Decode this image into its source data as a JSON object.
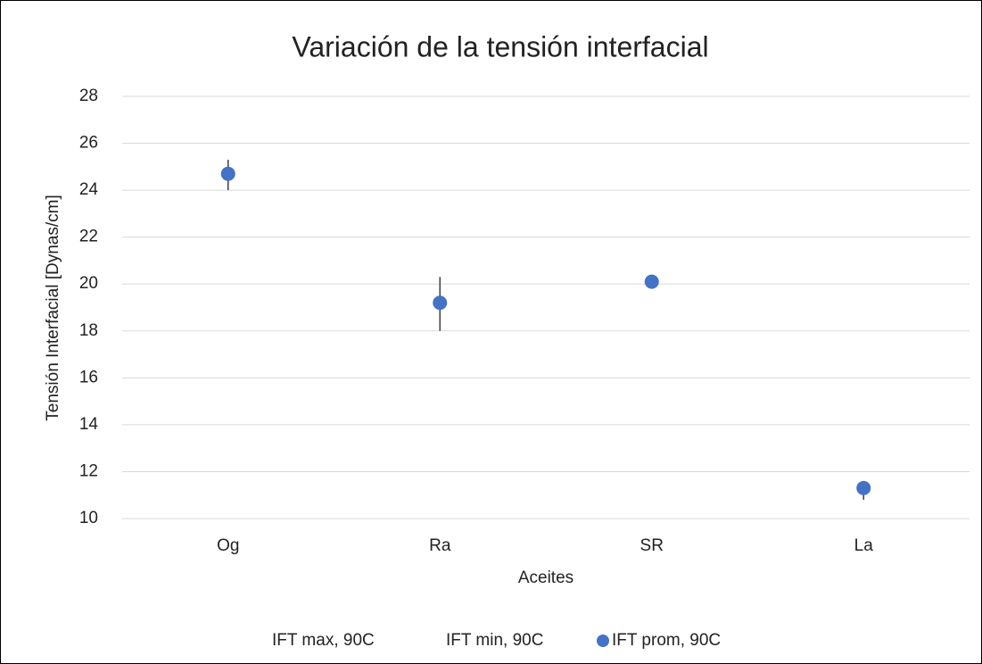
{
  "chart_data": {
    "type": "scatter",
    "title": "Variación de la tensión interfacial",
    "x_label": "Aceites",
    "y_label": "Tensión Interfacial [Dynas/cm]",
    "categories": [
      "Og",
      "Ra",
      "SR",
      "La"
    ],
    "series": [
      {
        "name": "IFT max, 90C",
        "values": [
          25.3,
          20.3,
          20.2,
          11.6
        ]
      },
      {
        "name": "IFT min, 90C",
        "values": [
          24.0,
          18.0,
          19.9,
          10.8
        ]
      },
      {
        "name": "IFT prom, 90C",
        "color": "#4472c4",
        "values": [
          24.7,
          19.2,
          20.1,
          11.3
        ]
      }
    ],
    "hilo_color": "#404040",
    "ylim": [
      10,
      28
    ],
    "yticks": [
      10,
      12,
      14,
      16,
      18,
      20,
      22,
      24,
      26,
      28
    ],
    "grid": true,
    "legend": "bottom"
  }
}
